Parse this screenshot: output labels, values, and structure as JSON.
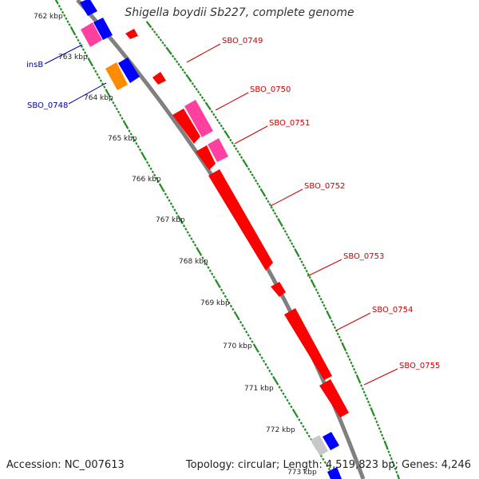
{
  "title": "Shigella boydii Sb227, complete genome",
  "footer": {
    "accession": "Accession: NC_007613",
    "summary": "Topology: circular; Length: 4,519,823 bp; Genes: 4,246"
  },
  "colors": {
    "backbone": "#808080",
    "ticks": "#228B22",
    "label_forward": "#cc0000",
    "label_reverse": "#0000aa",
    "gene_red": "#ff0000",
    "gene_pink": "#ff40a0",
    "gene_blue": "#0000ff",
    "gene_orange": "#ff8c00",
    "gene_gray": "#c8c8c8"
  },
  "ruler": [
    "762 kbp",
    "763 kbp",
    "764 kbp",
    "765 kbp",
    "766 kbp",
    "767 kbp",
    "768 kbp",
    "769 kbp",
    "770 kbp",
    "771 kbp",
    "772 kbp",
    "773 kbp"
  ],
  "labels": {
    "forward": [
      "SBO_0749",
      "SBO_0750",
      "SBO_0751",
      "SBO_0752",
      "SBO_0753",
      "SBO_0754",
      "SBO_0755"
    ],
    "reverse": [
      "insB",
      "SBO_0748"
    ]
  }
}
